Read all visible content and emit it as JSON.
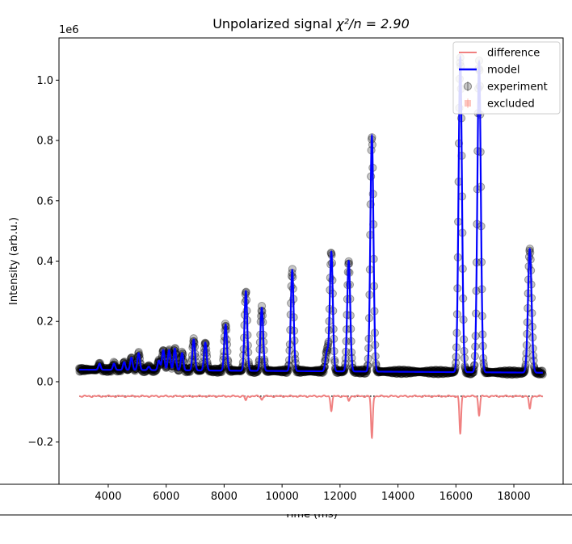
{
  "chart_data": {
    "type": "line",
    "title_text": "Unpolarized signal ",
    "title_math": "χ²/n = 2.90",
    "ylabel": "Intensity (arb.u.)",
    "xlabel": "Time (ms)",
    "y_multiplier": "1e6",
    "xlim": [
      2300,
      19700
    ],
    "ylim": [
      -0.34,
      1.14
    ],
    "x_ticks": [
      4000,
      6000,
      8000,
      10000,
      12000,
      14000,
      16000,
      18000
    ],
    "x_tick_labels": [
      "4000",
      "6000",
      "8000",
      "10000",
      "12000",
      "14000",
      "16000",
      "18000"
    ],
    "y_ticks": [
      -0.2,
      0.0,
      0.2,
      0.4,
      0.6,
      0.8,
      1.0
    ],
    "y_tick_labels": [
      "−0.2",
      "0.0",
      "0.2",
      "0.4",
      "0.6",
      "0.8",
      "1.0"
    ],
    "legend_position": "top-right",
    "legend": [
      "difference",
      "model",
      "experiment",
      "excluded"
    ],
    "colors": {
      "difference": "#f08080",
      "model": "#0000ff",
      "experiment": "#000000",
      "excluded": "#fa8072",
      "zero_line": "#000000"
    },
    "x_range": [
      3000,
      19000
    ],
    "baseline_start": 0.04,
    "baseline_end": 0.03,
    "difference_offset": -0.048,
    "peaks": [
      {
        "x": 3700,
        "y": 0.06
      },
      {
        "x": 4200,
        "y": 0.06
      },
      {
        "x": 4550,
        "y": 0.065
      },
      {
        "x": 4800,
        "y": 0.08
      },
      {
        "x": 5050,
        "y": 0.095
      },
      {
        "x": 5400,
        "y": 0.05
      },
      {
        "x": 5750,
        "y": 0.07
      },
      {
        "x": 5900,
        "y": 0.105
      },
      {
        "x": 6100,
        "y": 0.105
      },
      {
        "x": 6300,
        "y": 0.11
      },
      {
        "x": 6550,
        "y": 0.095
      },
      {
        "x": 6950,
        "y": 0.14
      },
      {
        "x": 7350,
        "y": 0.13
      },
      {
        "x": 8050,
        "y": 0.19
      },
      {
        "x": 8750,
        "y": 0.3
      },
      {
        "x": 9300,
        "y": 0.245
      },
      {
        "x": 10350,
        "y": 0.37
      },
      {
        "x": 11550,
        "y": 0.1
      },
      {
        "x": 11700,
        "y": 0.43
      },
      {
        "x": 12300,
        "y": 0.4
      },
      {
        "x": 13100,
        "y": 0.815
      },
      {
        "x": 16150,
        "y": 1.075
      },
      {
        "x": 16800,
        "y": 1.06
      },
      {
        "x": 18550,
        "y": 0.44
      }
    ],
    "difference_dips": [
      {
        "x": 8750,
        "y": -0.062
      },
      {
        "x": 9300,
        "y": -0.06
      },
      {
        "x": 11700,
        "y": -0.095
      },
      {
        "x": 12300,
        "y": -0.065
      },
      {
        "x": 13100,
        "y": -0.188
      },
      {
        "x": 16150,
        "y": -0.172
      },
      {
        "x": 16800,
        "y": -0.11
      },
      {
        "x": 18550,
        "y": -0.092
      }
    ]
  }
}
